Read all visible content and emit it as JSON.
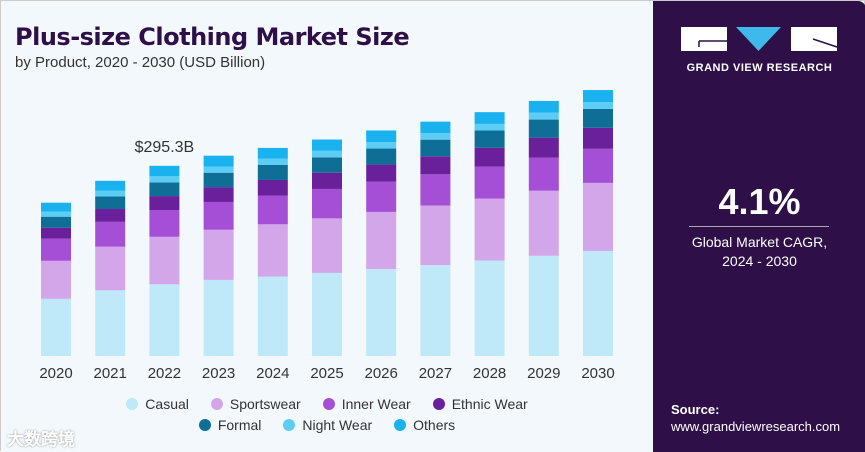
{
  "header": {
    "title": "Plus-size Clothing Market Size",
    "subtitle": "by Product, 2020 - 2030 (USD Billion)"
  },
  "sidebar": {
    "brand": "GRAND VIEW RESEARCH",
    "cagr_value": "4.1%",
    "cagr_label_1": "Global Market CAGR,",
    "cagr_label_2": "2024 - 2030",
    "source_label": "Source:",
    "source_url": "www.grandviewresearch.com"
  },
  "watermark": "大数跨境",
  "chart_data": {
    "type": "bar",
    "stacked": true,
    "title": "Plus-size Clothing Market Size",
    "subtitle": "by Product, 2020 - 2030 (USD Billion)",
    "xlabel": "",
    "ylabel": "USD Billion",
    "ylim": [
      0,
      420
    ],
    "grid": false,
    "legend_position": "bottom",
    "categories": [
      "2020",
      "2021",
      "2022",
      "2023",
      "2024",
      "2025",
      "2026",
      "2027",
      "2028",
      "2029",
      "2030"
    ],
    "annotations": [
      {
        "category": "2022",
        "text": "$295.3B"
      }
    ],
    "series": [
      {
        "name": "Casual",
        "color": "#bfe9f8",
        "values": [
          88.8,
          102.0,
          111.3,
          118.2,
          123.4,
          129.0,
          135.1,
          141.2,
          148.2,
          155.6,
          163.1
        ]
      },
      {
        "name": "Sportswear",
        "color": "#d3a6ea",
        "values": [
          59.0,
          67.7,
          73.8,
          77.8,
          81.1,
          84.7,
          88.6,
          92.5,
          96.3,
          101.0,
          105.7
        ]
      },
      {
        "name": "Inner Wear",
        "color": "#a44fd6",
        "values": [
          34.3,
          38.6,
          41.6,
          43.2,
          44.6,
          45.7,
          46.9,
          48.4,
          49.6,
          51.5,
          52.9
        ]
      },
      {
        "name": "Ethnic Wear",
        "color": "#6a1f9b",
        "values": [
          17.1,
          19.9,
          21.6,
          23.0,
          24.2,
          25.2,
          26.6,
          28.0,
          29.2,
          30.9,
          32.6
        ]
      },
      {
        "name": "Formal",
        "color": "#0f6e96",
        "values": [
          17.1,
          19.6,
          21.3,
          22.4,
          23.3,
          23.9,
          24.9,
          25.8,
          26.9,
          28.1,
          29.3
        ]
      },
      {
        "name": "Night Wear",
        "color": "#5ccdf5",
        "values": [
          7.9,
          8.7,
          9.4,
          9.6,
          9.7,
          10.1,
          10.2,
          10.2,
          10.2,
          10.7,
          10.7
        ]
      },
      {
        "name": "Others",
        "color": "#1ab1ef",
        "values": [
          13.8,
          15.5,
          16.3,
          16.8,
          16.8,
          17.5,
          17.9,
          17.8,
          18.2,
          18.2,
          18.6
        ]
      }
    ]
  }
}
